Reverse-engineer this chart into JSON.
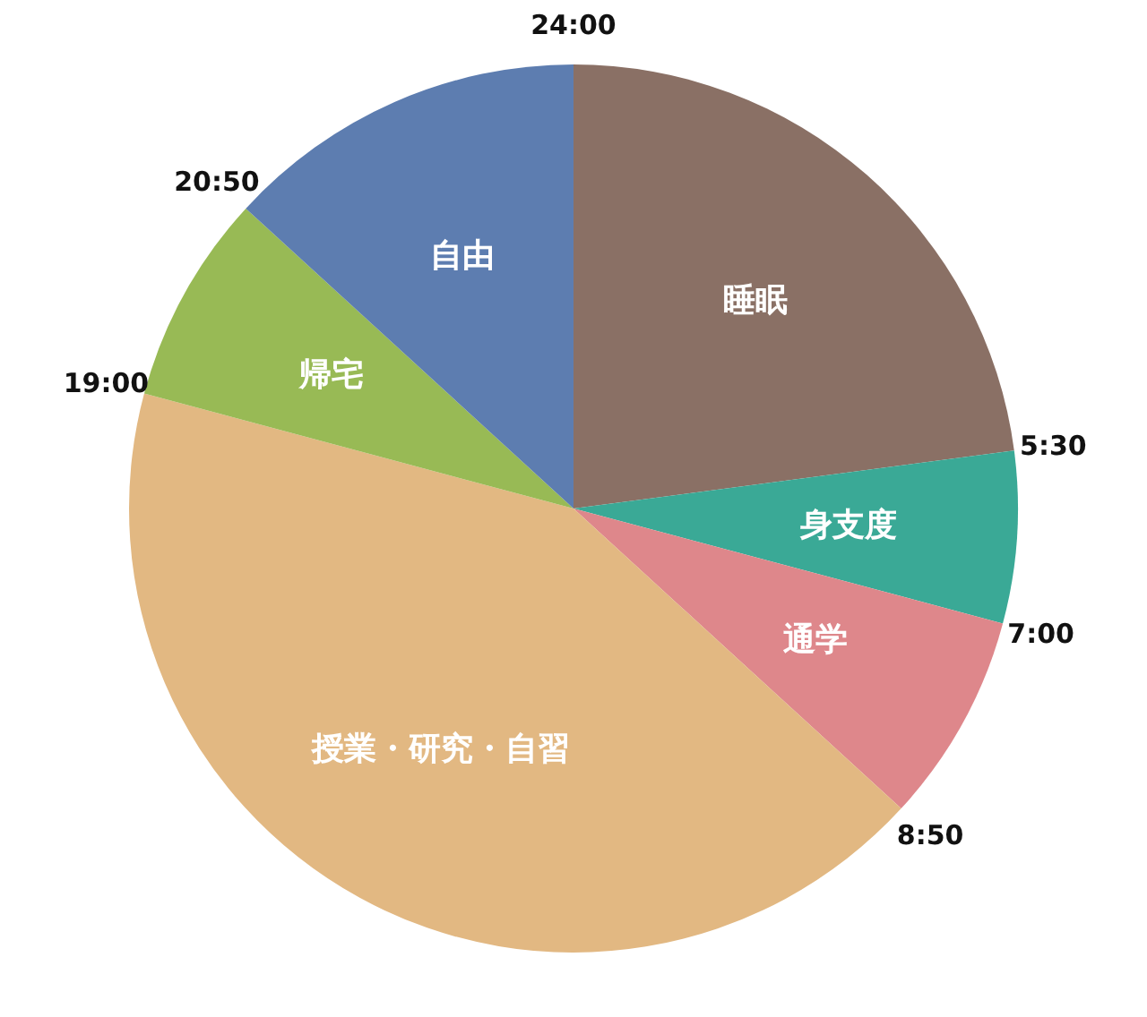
{
  "chart_data": {
    "type": "pie",
    "categories": [
      "睡眠",
      "身支度",
      "通学",
      "授業・研究・自習",
      "帰宅",
      "自由"
    ],
    "values": [
      22.917,
      6.25,
      7.639,
      42.361,
      7.639,
      13.194
    ],
    "colors": [
      "#8a7065",
      "#3aa996",
      "#de878b",
      "#e2b882",
      "#98ba55",
      "#5d7db0"
    ],
    "annotations": [
      "24:00",
      "5:30",
      "7:00",
      "8:50",
      "19:00",
      "20:50"
    ]
  }
}
